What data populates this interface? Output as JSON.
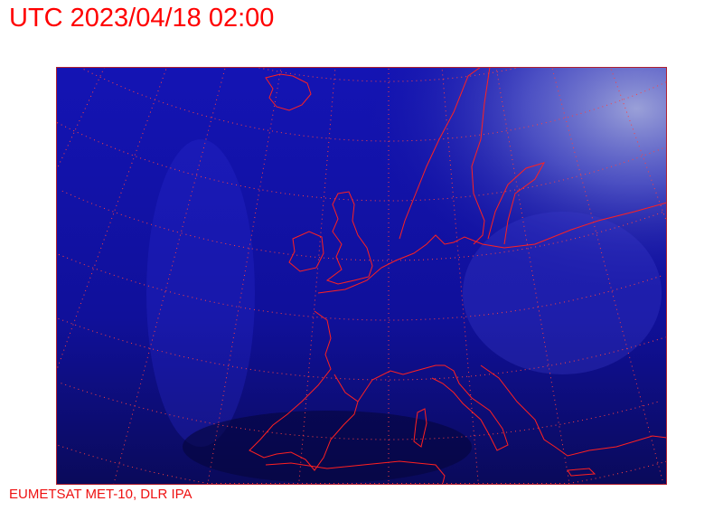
{
  "title": "UTC 2023/04/18 02:00",
  "credit": "EUMETSAT MET-10, DLR IPA",
  "map": {
    "type": "satellite-image",
    "region": "Europe",
    "colors": {
      "background": "#0a0a7a",
      "coastline": "#ff2020",
      "graticule": "#ff4040",
      "border": "#b02030",
      "text": "#ff0000"
    },
    "graticule": "dotted"
  }
}
